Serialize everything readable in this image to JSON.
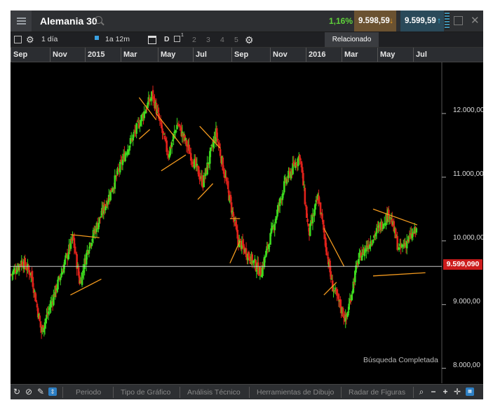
{
  "window": {
    "title": "Alemania 30",
    "change": "1,16%",
    "sell_price": "9.598,59",
    "buy_price": "9.599,59"
  },
  "toolbar": {
    "period": "1 día",
    "range": "1a 12m",
    "view_mode": "D",
    "compare_sup": "1",
    "layouts": [
      "2",
      "3",
      "4",
      "5"
    ],
    "related": "Relacionado"
  },
  "date_axis": [
    "Sep",
    "Nov",
    "2015",
    "Mar",
    "May",
    "Jul",
    "Sep",
    "Nov",
    "2016",
    "Mar",
    "May",
    "Jul"
  ],
  "price_axis": [
    "12.000,00",
    "11.000,00",
    "10.000,00",
    "9.000,00",
    "8.000,00"
  ],
  "current_price": "9.599,090",
  "status_text": "Búsqueda Completada",
  "bottom_tabs": [
    "Periodo",
    "Tipo de Gráfico",
    "Análisis Técnico",
    "Herramientas de Dibujo",
    "Radar de Figuras"
  ],
  "colors": {
    "up": "#3ddc1f",
    "down": "#e0221b",
    "trendline": "#f39a1e",
    "price_badge": "#cc1c1c"
  },
  "chart_data": {
    "type": "candlestick",
    "ylim": [
      7800,
      12700
    ],
    "x_range": [
      "2014-08-28",
      "2016-07-12"
    ],
    "current_price": 9599.09,
    "close_path": [
      {
        "x": "2014-08-29",
        "y": 9470
      },
      {
        "x": "2014-09-15",
        "y": 9680
      },
      {
        "x": "2014-09-30",
        "y": 9480
      },
      {
        "x": "2014-10-16",
        "y": 8570
      },
      {
        "x": "2014-11-10",
        "y": 9300
      },
      {
        "x": "2014-12-05",
        "y": 10050
      },
      {
        "x": "2014-12-16",
        "y": 9330
      },
      {
        "x": "2014-12-29",
        "y": 9900
      },
      {
        "x": "2015-01-31",
        "y": 10700
      },
      {
        "x": "2015-02-27",
        "y": 11400
      },
      {
        "x": "2015-04-10",
        "y": 12300
      },
      {
        "x": "2015-05-05",
        "y": 11350
      },
      {
        "x": "2015-05-20",
        "y": 11850
      },
      {
        "x": "2015-06-29",
        "y": 10900
      },
      {
        "x": "2015-07-20",
        "y": 11700
      },
      {
        "x": "2015-08-24",
        "y": 10000
      },
      {
        "x": "2015-09-29",
        "y": 9500
      },
      {
        "x": "2015-11-06",
        "y": 10900
      },
      {
        "x": "2015-11-30",
        "y": 11350
      },
      {
        "x": "2015-12-14",
        "y": 10100
      },
      {
        "x": "2015-12-29",
        "y": 10700
      },
      {
        "x": "2016-01-20",
        "y": 9300
      },
      {
        "x": "2016-02-11",
        "y": 8750
      },
      {
        "x": "2016-03-01",
        "y": 9700
      },
      {
        "x": "2016-04-20",
        "y": 10450
      },
      {
        "x": "2016-05-05",
        "y": 9850
      },
      {
        "x": "2016-06-09",
        "y": 10250
      },
      {
        "x": "2016-06-16",
        "y": 9550
      },
      {
        "x": "2016-06-24",
        "y": 9300
      },
      {
        "x": "2016-07-08",
        "y": 9599
      }
    ],
    "trendlines": [
      {
        "from": {
          "x": "2014-12-01",
          "y": 10100
        },
        "to": {
          "x": "2015-01-16",
          "y": 10050
        }
      },
      {
        "from": {
          "x": "2014-12-01",
          "y": 9150
        },
        "to": {
          "x": "2015-01-19",
          "y": 9400
        }
      },
      {
        "from": {
          "x": "2015-03-20",
          "y": 12250
        },
        "to": {
          "x": "2015-04-16",
          "y": 11900
        }
      },
      {
        "from": {
          "x": "2015-03-20",
          "y": 11600
        },
        "to": {
          "x": "2015-04-06",
          "y": 11750
        }
      },
      {
        "from": {
          "x": "2015-04-16",
          "y": 12000
        },
        "to": {
          "x": "2015-05-26",
          "y": 11500
        }
      },
      {
        "from": {
          "x": "2015-04-24",
          "y": 11100
        },
        "to": {
          "x": "2015-06-02",
          "y": 11350
        }
      },
      {
        "from": {
          "x": "2015-06-24",
          "y": 11800
        },
        "to": {
          "x": "2015-07-27",
          "y": 11450
        }
      },
      {
        "from": {
          "x": "2015-06-21",
          "y": 10650
        },
        "to": {
          "x": "2015-07-15",
          "y": 10900
        }
      },
      {
        "from": {
          "x": "2015-08-11",
          "y": 10350
        },
        "to": {
          "x": "2015-08-27",
          "y": 10350
        }
      },
      {
        "from": {
          "x": "2015-08-11",
          "y": 9650
        },
        "to": {
          "x": "2015-08-27",
          "y": 10000
        }
      },
      {
        "from": {
          "x": "2016-01-07",
          "y": 10200
        },
        "to": {
          "x": "2016-02-08",
          "y": 9600
        }
      },
      {
        "from": {
          "x": "2016-01-07",
          "y": 9150
        },
        "to": {
          "x": "2016-01-27",
          "y": 9350
        }
      },
      {
        "from": {
          "x": "2016-03-25",
          "y": 10500
        },
        "to": {
          "x": "2016-06-03",
          "y": 10250
        }
      },
      {
        "from": {
          "x": "2016-03-25",
          "y": 9450
        },
        "to": {
          "x": "2016-06-16",
          "y": 9500
        }
      }
    ]
  }
}
